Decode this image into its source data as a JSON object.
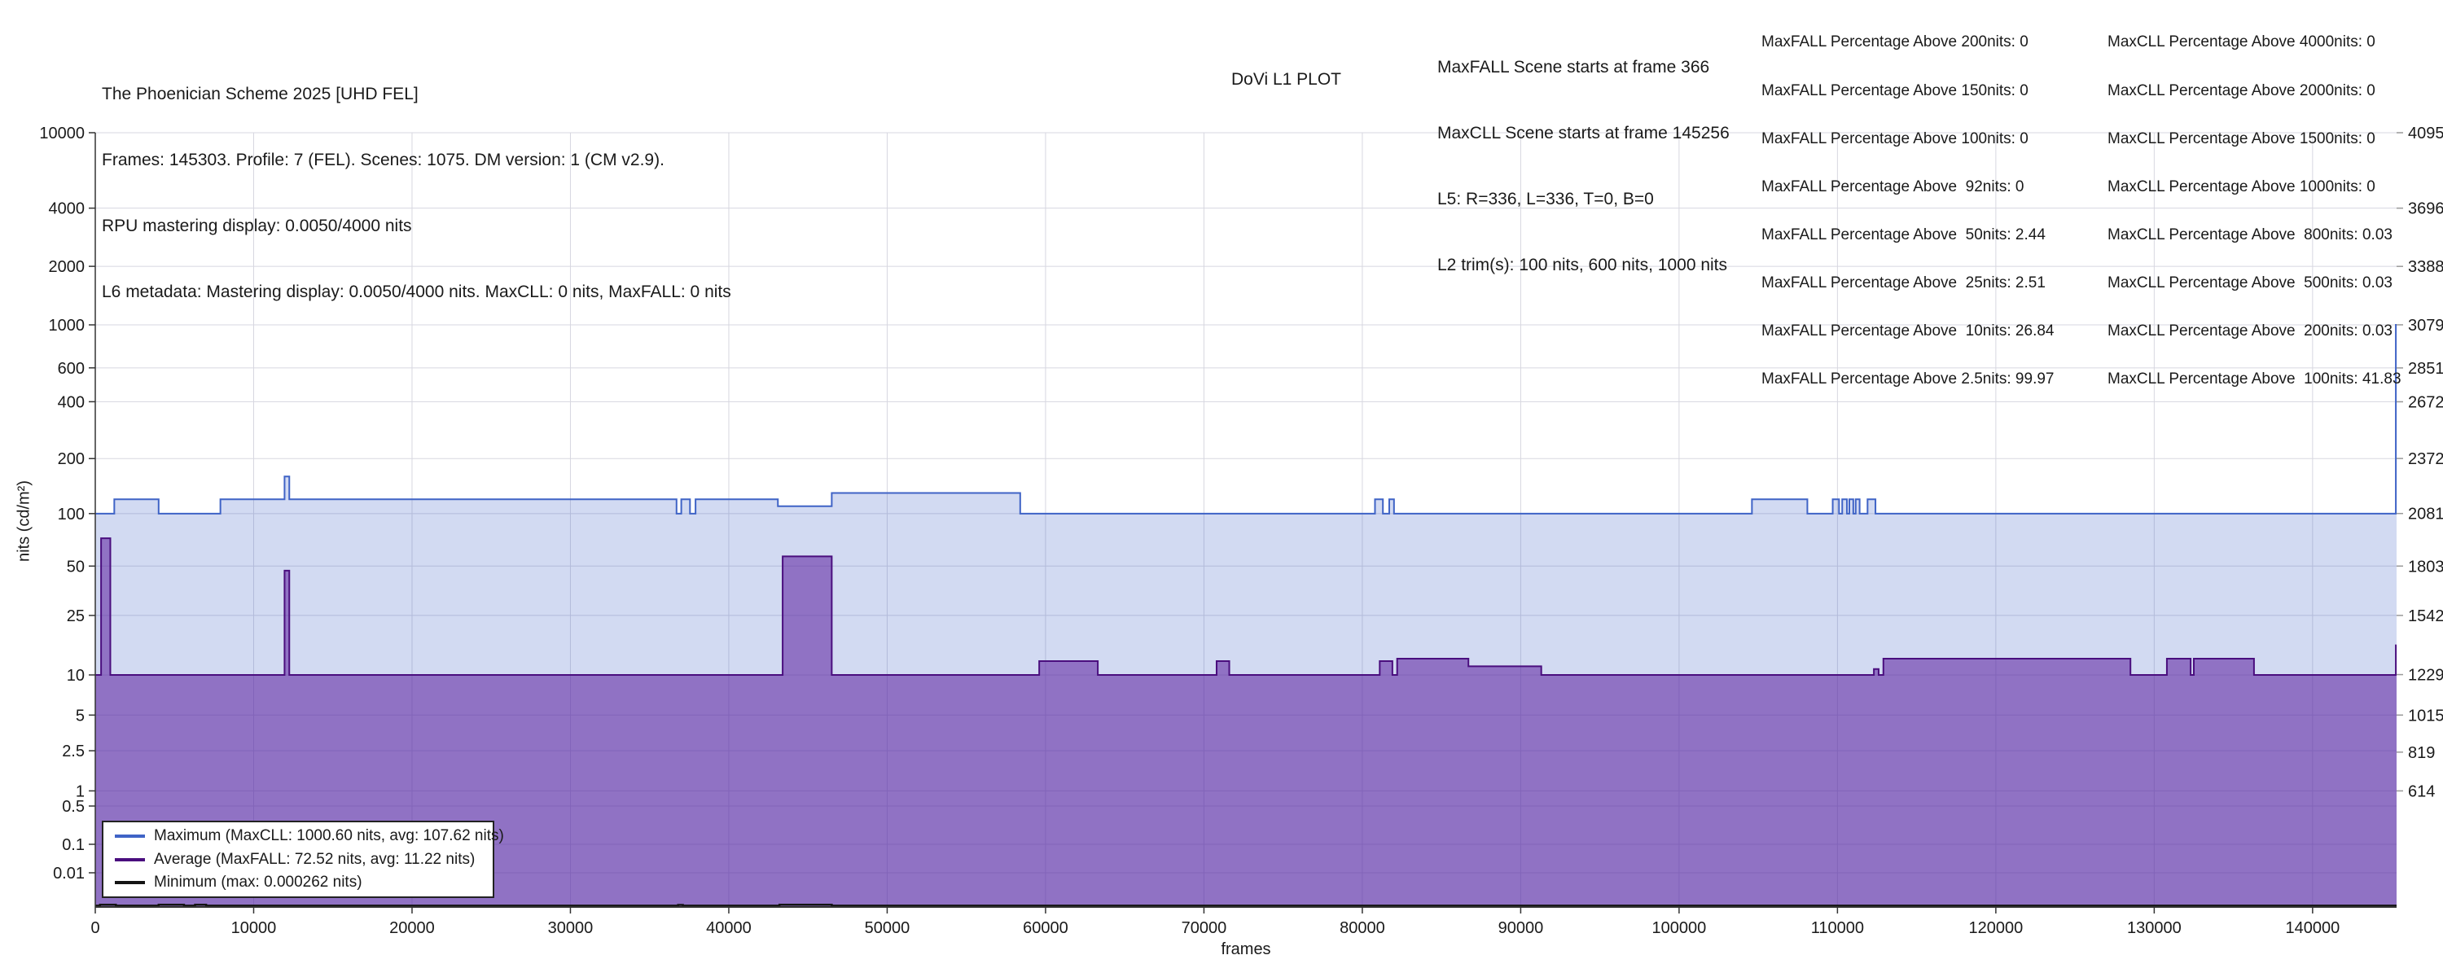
{
  "header": {
    "title_lines": [
      "The Phoenician Scheme 2025 [UHD FEL]",
      "Frames: 145303. Profile: 7 (FEL). Scenes: 1075. DM version: 1 (CM v2.9).",
      "RPU mastering display: 0.0050/4000 nits",
      "L6 metadata: Mastering display: 0.0050/4000 nits. MaxCLL: 0 nits, MaxFALL: 0 nits"
    ],
    "plot_label": "DoVi L1 PLOT",
    "scene_info_lines": [
      "MaxFALL Scene starts at frame 366",
      "MaxCLL Scene starts at frame 145256",
      "L5: R=336, L=336, T=0, B=0",
      "L2 trim(s): 100 nits, 600 nits, 1000 nits"
    ],
    "maxfall_lines": [
      "MaxFALL Percentage Above 200nits: 0",
      "MaxFALL Percentage Above 150nits: 0",
      "MaxFALL Percentage Above 100nits: 0",
      "MaxFALL Percentage Above  92nits: 0",
      "MaxFALL Percentage Above  50nits: 2.44",
      "MaxFALL Percentage Above  25nits: 2.51",
      "MaxFALL Percentage Above  10nits: 26.84",
      "MaxFALL Percentage Above 2.5nits: 99.97"
    ],
    "maxcll_lines": [
      "MaxCLL Percentage Above 4000nits: 0",
      "MaxCLL Percentage Above 2000nits: 0",
      "MaxCLL Percentage Above 1500nits: 0",
      "MaxCLL Percentage Above 1000nits: 0",
      "MaxCLL Percentage Above  800nits: 0.03",
      "MaxCLL Percentage Above  500nits: 0.03",
      "MaxCLL Percentage Above  200nits: 0.03",
      "MaxCLL Percentage Above  100nits: 41.83"
    ]
  },
  "legend": {
    "items": [
      {
        "label": "Maximum (MaxCLL: 1000.60 nits, avg: 107.62 nits)",
        "color": "#3f63c6"
      },
      {
        "label": "Average (MaxFALL: 72.52 nits, avg: 11.22 nits)",
        "color": "#4a0e7e"
      },
      {
        "label": "Minimum (max: 0.000262 nits)",
        "color": "#141414"
      }
    ]
  },
  "colors": {
    "max_line": "#3f63c6",
    "max_fill": "rgba(65,100,200,0.24)",
    "avg_line": "#4a0e7e",
    "avg_fill": "rgba(90,30,158,0.55)",
    "min_line": "#141414",
    "grid": "#d7d7e0",
    "axis": "#333333",
    "right_tick": "#999999",
    "text": "#1a1a1a"
  },
  "chart_data": {
    "type": "area",
    "title": "DoVi L1 PLOT",
    "xlabel": "frames",
    "ylabel": "nits (cd/m²)",
    "x_range": [
      0,
      145303
    ],
    "x_ticks": [
      0,
      10000,
      20000,
      30000,
      40000,
      50000,
      60000,
      70000,
      80000,
      90000,
      100000,
      110000,
      120000,
      130000,
      140000
    ],
    "y_scale": "PQ (SMPTE ST 2084), linear in 12-bit code value",
    "y_ticks_left_nits": [
      10000,
      4000,
      2000,
      1000,
      600,
      400,
      200,
      100,
      50,
      25,
      10,
      5,
      2.5,
      1,
      0.5,
      0.1,
      0.01
    ],
    "y_ticks_right_codes": [
      4095,
      3696,
      3388,
      3079,
      2851,
      2672,
      2372,
      2081,
      1803,
      1542,
      1229,
      1015,
      819,
      614
    ],
    "grid": true,
    "legend_position": "lower left",
    "series": [
      {
        "name": "Maximum",
        "units": "nits",
        "steps_format": "[start_frame, value]; each value holds until next start_frame; last holds to 145303",
        "steps": [
          [
            0,
            100
          ],
          [
            1200,
            120
          ],
          [
            4000,
            100
          ],
          [
            7900,
            120
          ],
          [
            11950,
            160
          ],
          [
            12250,
            120
          ],
          [
            36700,
            100
          ],
          [
            37000,
            120
          ],
          [
            37550,
            100
          ],
          [
            37900,
            120
          ],
          [
            43100,
            110
          ],
          [
            46500,
            130
          ],
          [
            58400,
            100
          ],
          [
            80800,
            120
          ],
          [
            81300,
            100
          ],
          [
            81700,
            120
          ],
          [
            82000,
            100
          ],
          [
            104600,
            120
          ],
          [
            108100,
            100
          ],
          [
            109700,
            120
          ],
          [
            110100,
            100
          ],
          [
            110300,
            120
          ],
          [
            110600,
            100
          ],
          [
            110750,
            120
          ],
          [
            111000,
            100
          ],
          [
            111150,
            120
          ],
          [
            111400,
            100
          ],
          [
            111900,
            120
          ],
          [
            112400,
            100
          ],
          [
            145256,
            1000.6
          ]
        ]
      },
      {
        "name": "Average",
        "units": "nits",
        "steps_format": "[start_frame, value]; each value holds until next start_frame; last holds to 145303",
        "steps": [
          [
            0,
            10
          ],
          [
            366,
            72.52
          ],
          [
            950,
            10
          ],
          [
            11950,
            47
          ],
          [
            12250,
            10
          ],
          [
            43400,
            57
          ],
          [
            46500,
            10
          ],
          [
            59600,
            12.5
          ],
          [
            63300,
            10
          ],
          [
            70800,
            12.5
          ],
          [
            71600,
            10
          ],
          [
            81100,
            12.5
          ],
          [
            81900,
            10
          ],
          [
            82200,
            13
          ],
          [
            86700,
            11.5
          ],
          [
            91300,
            10
          ],
          [
            112300,
            11
          ],
          [
            112600,
            10
          ],
          [
            112900,
            13
          ],
          [
            128500,
            10
          ],
          [
            130800,
            13
          ],
          [
            132300,
            10
          ],
          [
            132500,
            13
          ],
          [
            136300,
            10
          ],
          [
            145256,
            16
          ]
        ]
      },
      {
        "name": "Minimum",
        "units": "nits",
        "steps_format": "[start_frame, value]; each value holds until next start_frame; last holds to 145303",
        "steps": [
          [
            0,
            0.0001
          ],
          [
            300,
            0.00026
          ],
          [
            1300,
            0.0001
          ],
          [
            4000,
            0.00026
          ],
          [
            5600,
            0.0001
          ],
          [
            6300,
            0.00026
          ],
          [
            7000,
            0.0001
          ],
          [
            36800,
            0.00022
          ],
          [
            37100,
            0.0001
          ],
          [
            43200,
            0.00026
          ],
          [
            46500,
            0.0001
          ]
        ]
      }
    ]
  }
}
